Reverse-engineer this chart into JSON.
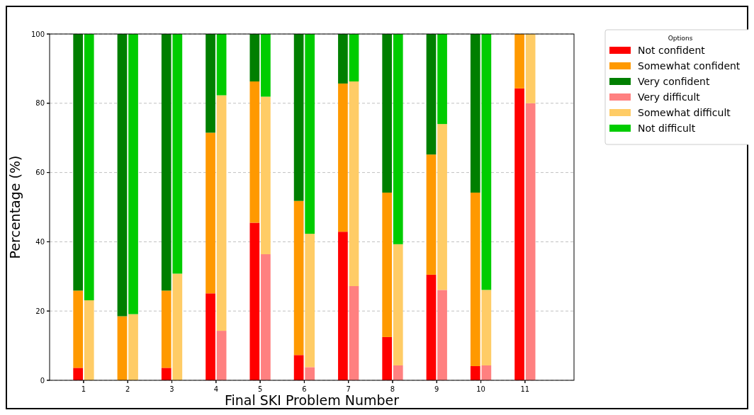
{
  "chart_data": [
    {
      "type": "bar",
      "stacked": true,
      "xlabel": "Final SKI Problem Number",
      "ylabel": "Percentage (%)",
      "legend_title": "Options",
      "legend": "top right",
      "categories": [
        "1",
        "2",
        "3",
        "4",
        "5",
        "6",
        "7",
        "8",
        "9",
        "10",
        "11"
      ],
      "ylim": [
        0,
        100
      ],
      "yticks": [
        0,
        20,
        40,
        60,
        80,
        100
      ],
      "grid": "y",
      "series": [
        {
          "name": "Not confident",
          "color": "#ff0000",
          "values": [
            3.6,
            0,
            3.6,
            25.1,
            45.5,
            7.3,
            42.9,
            12.5,
            30.5,
            4.1,
            84.3
          ]
        },
        {
          "name": "Somewhat confident",
          "color": "#ff9900",
          "values": [
            22.3,
            18.5,
            22.3,
            46.4,
            40.8,
            44.5,
            42.8,
            41.7,
            34.7,
            50.1,
            15.7
          ]
        },
        {
          "name": "Very confident",
          "color": "#007f00",
          "values": [
            74.1,
            81.5,
            74.1,
            28.5,
            13.7,
            48.2,
            14.3,
            45.8,
            34.8,
            45.8,
            0
          ]
        }
      ]
    },
    {
      "type": "bar",
      "stacked": true,
      "legend": "top right",
      "tick_labels": false,
      "categories": [
        "1",
        "2",
        "3",
        "4",
        "5",
        "6",
        "7",
        "8",
        "9",
        "10",
        "11"
      ],
      "ylim": [
        0,
        100
      ],
      "yticks": [
        0,
        20,
        40,
        60,
        80,
        100
      ],
      "series": [
        {
          "name": "Very difficult",
          "color": "#ff8080",
          "values": [
            0,
            0,
            0,
            14.3,
            36.4,
            3.8,
            27.2,
            4.3,
            26.1,
            4.3,
            80.0
          ]
        },
        {
          "name": "Somewhat difficult",
          "color": "#ffcc66",
          "values": [
            23.1,
            19.1,
            30.8,
            68.0,
            45.5,
            38.5,
            59.1,
            35.0,
            47.9,
            21.8,
            20.0
          ]
        },
        {
          "name": "Not difficult",
          "color": "#00cc00",
          "values": [
            76.9,
            80.9,
            69.2,
            17.7,
            18.1,
            57.7,
            13.7,
            60.7,
            26.0,
            73.9,
            0
          ]
        }
      ]
    }
  ]
}
